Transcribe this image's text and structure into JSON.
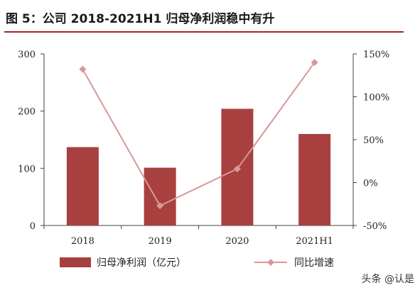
{
  "header": {
    "figure_title": "图 5：公司 2018-2021H1 归母净利润稳中有升"
  },
  "watermark": "头条 @认是",
  "colors": {
    "bar": "#a8403f",
    "line": "#d8979a",
    "axis": "#404040",
    "title_rule": "#a6252a"
  },
  "chart_data": {
    "type": "bar",
    "title": "",
    "categories": [
      "2018",
      "2019",
      "2020",
      "2021H1"
    ],
    "series": [
      {
        "name": "归母净利润（亿元）",
        "type": "bar",
        "axis": "left",
        "values": [
          137,
          101,
          204,
          160
        ]
      },
      {
        "name": "同比增速",
        "type": "line",
        "axis": "right",
        "values": [
          132,
          -27,
          16,
          140
        ]
      }
    ],
    "left_axis": {
      "ylim": [
        0,
        300
      ],
      "ticks": [
        0,
        100,
        200,
        300
      ],
      "tick_labels": [
        "0",
        "100",
        "200",
        "300"
      ]
    },
    "right_axis": {
      "ylim": [
        -50,
        150
      ],
      "ticks": [
        -50,
        0,
        50,
        100,
        150
      ],
      "tick_labels": [
        "-50%",
        "0%",
        "50%",
        "100%",
        "150%"
      ]
    },
    "grid": false,
    "legend_position": "bottom"
  }
}
